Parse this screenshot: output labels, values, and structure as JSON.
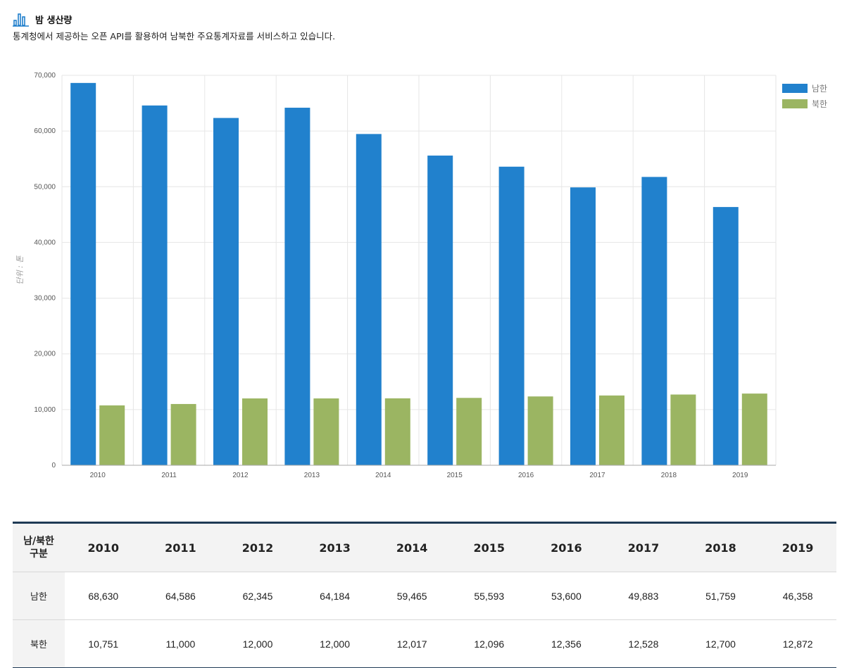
{
  "header": {
    "title": "밤 생산량",
    "subtitle": "통계청에서 제공하는 오픈 API를 활용하여 남북한 주요통계자료를 서비스하고 있습니다."
  },
  "chart_data": {
    "type": "bar",
    "title": "",
    "xlabel": "",
    "ylabel": "단위 : 톤",
    "ylim": [
      0,
      70000
    ],
    "yticks": [
      "0",
      "10,000",
      "20,000",
      "30,000",
      "40,000",
      "50,000",
      "60,000",
      "70,000"
    ],
    "grid": true,
    "legend_position": "top-right",
    "categories": [
      "2010",
      "2011",
      "2012",
      "2013",
      "2014",
      "2015",
      "2016",
      "2017",
      "2018",
      "2019"
    ],
    "series": [
      {
        "name": "남한",
        "color": "#2181cd",
        "values": [
          68630,
          64586,
          62345,
          64184,
          59465,
          55593,
          53600,
          49883,
          51759,
          46358
        ]
      },
      {
        "name": "북한",
        "color": "#9bb562",
        "values": [
          10751,
          11000,
          12000,
          12000,
          12017,
          12096,
          12356,
          12528,
          12700,
          12872
        ]
      }
    ]
  },
  "table": {
    "corner_line1": "남/북한",
    "corner_line2": "구분",
    "years": [
      "2010",
      "2011",
      "2012",
      "2013",
      "2014",
      "2015",
      "2016",
      "2017",
      "2018",
      "2019"
    ],
    "rows": [
      {
        "label": "남한",
        "cells": [
          "68,630",
          "64,586",
          "62,345",
          "64,184",
          "59,465",
          "55,593",
          "53,600",
          "49,883",
          "51,759",
          "46,358"
        ]
      },
      {
        "label": "북한",
        "cells": [
          "10,751",
          "11,000",
          "12,000",
          "12,000",
          "12,017",
          "12,096",
          "12,356",
          "12,528",
          "12,700",
          "12,872"
        ]
      }
    ]
  }
}
